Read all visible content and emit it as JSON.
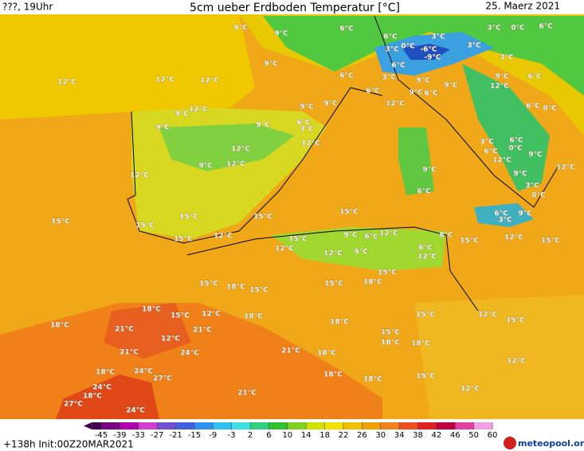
{
  "header": {
    "left": "???, 19Uhr",
    "title": "5cm ueber Erdboden Temperatur [°C]",
    "date": "25. Maerz 2021"
  },
  "labels": [
    "9°C",
    "9°C",
    "6°C",
    "6°C",
    "3°C",
    "3°C",
    "0°C",
    "6°C",
    "3°C",
    "0°C",
    "-6°C",
    "-9°C",
    "3°C",
    "12°C",
    "12°C",
    "12°C",
    "9°C",
    "6°C",
    "3°C",
    "6°C",
    "3°C",
    "9°C",
    "6°C",
    "12°C",
    "9°C",
    "6°C",
    "9°C",
    "9°C",
    "12°C",
    "6°C",
    "9°C",
    "12°C",
    "9°C",
    "9°C",
    "6°C",
    "0°C",
    "9°C",
    "9°C",
    "6°C",
    "3°C",
    "12°C",
    "3°C",
    "6°C",
    "6°C",
    "0°C",
    "9°C",
    "12°C",
    "12°C",
    "9°C",
    "12°C",
    "9°C",
    "9°C",
    "12°C",
    "12°C",
    "3°C",
    "6°C",
    "0°C",
    "15°C",
    "15°C",
    "15°C",
    "15°C",
    "6°C",
    "9°C",
    "15°C",
    "3°C",
    "15°C",
    "12°C",
    "15°C",
    "9°C",
    "6°C",
    "12°C",
    "8°C",
    "15°C",
    "12°C",
    "15°C",
    "12°C",
    "12°C",
    "9°C",
    "6°C",
    "12°C",
    "15°C",
    "15°C",
    "18°C",
    "15°C",
    "15°C",
    "18°C",
    "18°C",
    "15°C",
    "12°C",
    "18°C",
    "15°C",
    "12°C",
    "15°C",
    "18°C",
    "21°C",
    "21°C",
    "18°C",
    "15°C",
    "12°C",
    "18°C",
    "18°C",
    "21°C",
    "24°C",
    "21°C",
    "18°C",
    "12°C",
    "18°C",
    "24°C",
    "27°C",
    "18°C",
    "18°C",
    "15°C",
    "24°C",
    "21°C",
    "12°C",
    "18°C",
    "27°C",
    "24°C"
  ],
  "colorbar": {
    "ticks": [
      -45,
      -39,
      -33,
      -27,
      -21,
      -15,
      -9,
      -3,
      2,
      6,
      10,
      14,
      18,
      22,
      26,
      30,
      34,
      38,
      42,
      46,
      50,
      60
    ],
    "colors": [
      "#7a0080",
      "#b000b0",
      "#d040d0",
      "#7050d0",
      "#4060e0",
      "#3090f0",
      "#30c0f0",
      "#40e0e0",
      "#30d080",
      "#30c030",
      "#80d020",
      "#d0e000",
      "#f0e000",
      "#f0c000",
      "#f0a000",
      "#f08020",
      "#f05020",
      "#e02020",
      "#c00040",
      "#e040a0",
      "#f0a0e0"
    ],
    "start_color": "#400050"
  },
  "footer": {
    "run": "+138h Init:00Z20MAR2021",
    "logo": "meteopool.org"
  }
}
